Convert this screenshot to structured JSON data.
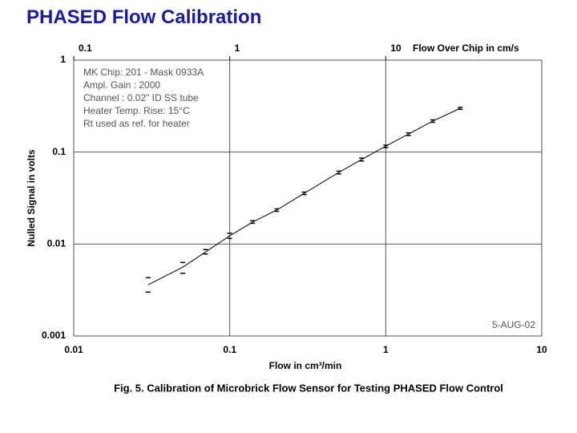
{
  "title": "PHASED Flow Calibration",
  "chart_data": {
    "type": "line",
    "caption": "Fig. 5.  Calibration of Microbrick Flow Sensor for Testing PHASED Flow Control",
    "x_label": "Flow in cm³/min",
    "y_label": "Nulled Signal in volts",
    "x2_label": "Flow Over Chip in cm/s",
    "annotations": [
      "MK Chip: 201 - Mask 0933A",
      "Ampl. Gain :  2000",
      "Channel :  0.02\" ID SS tube",
      "Heater Temp. Rise:  15°C",
      "Rt used as ref. for heater"
    ],
    "date": "5-AUG-02",
    "x": [
      0.03,
      0.05,
      0.07,
      0.1,
      0.14,
      0.2,
      0.3,
      0.5,
      0.7,
      1,
      1.4,
      2,
      3
    ],
    "values": [
      0.0036,
      0.0056,
      0.0082,
      0.0123,
      0.0173,
      0.0234,
      0.0356,
      0.06,
      0.083,
      0.116,
      0.157,
      0.217,
      0.299
    ],
    "lower": [
      0.003,
      0.0048,
      0.0078,
      0.0115,
      0.0168,
      0.0227,
      0.0345,
      0.058,
      0.08,
      0.112,
      0.152,
      0.211,
      0.292
    ],
    "upper": [
      0.0043,
      0.0063,
      0.0087,
      0.0131,
      0.0179,
      0.0241,
      0.0367,
      0.062,
      0.086,
      0.119,
      0.162,
      0.224,
      0.306
    ],
    "color": "#000000",
    "xscale": "log",
    "yscale": "log",
    "xlim": [
      0.01,
      10
    ],
    "xticks": [
      0.01,
      0.1,
      1,
      10
    ],
    "ylim": [
      0.001,
      1
    ],
    "yticks": [
      0.001,
      0.01,
      0.1,
      1
    ],
    "x2lim": [
      0.1,
      100
    ],
    "x2ticks": [
      0.1,
      1,
      10
    ],
    "grid": true
  }
}
